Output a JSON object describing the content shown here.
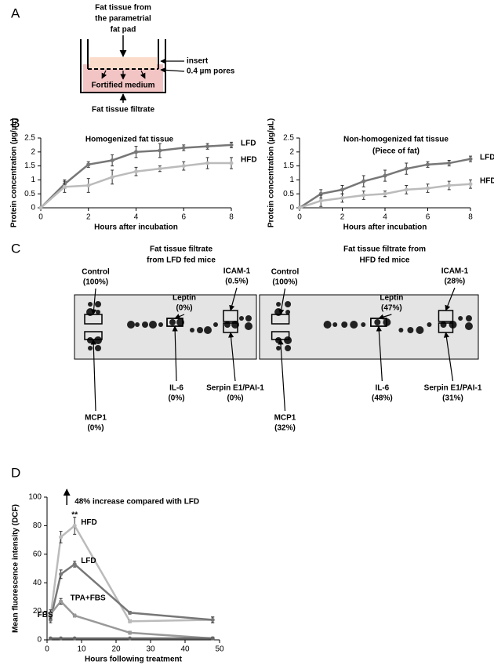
{
  "panel_labels": [
    "A",
    "B",
    "C",
    "D"
  ],
  "diagram": {
    "top_label": [
      "Fat tissue from",
      "the parametrial",
      "fat pad"
    ],
    "insert": "insert",
    "pores": "0.4 µm pores",
    "medium": "Fortified medium",
    "bottom_label": "Fat tissue filtrate"
  },
  "blots": [
    {
      "title": [
        "Fat tissue filtrate",
        "from LFD fed mice"
      ],
      "spots": [
        {
          "name": "Control",
          "percent": "(100%)"
        },
        {
          "name": "Leptin",
          "percent": "(0%)"
        },
        {
          "name": "ICAM-1",
          "percent": "(0.5%)"
        },
        {
          "name": "IL-6",
          "percent": "(0%)"
        },
        {
          "name": "Serpin E1/PAI-1",
          "percent": "(0%)"
        },
        {
          "name": "MCP1",
          "percent": "(0%)"
        }
      ]
    },
    {
      "title": [
        "Fat tissue filtrate from",
        "HFD fed mice"
      ],
      "spots": [
        {
          "name": "Control",
          "percent": "(100%)"
        },
        {
          "name": "Leptin",
          "percent": "(47%)"
        },
        {
          "name": "ICAM-1",
          "percent": "(28%)"
        },
        {
          "name": "IL-6",
          "percent": "(48%)"
        },
        {
          "name": "Serpin E1/PAI-1",
          "percent": "(31%)"
        },
        {
          "name": "MCP1",
          "percent": "(32%)"
        }
      ]
    }
  ],
  "chart_data": [
    {
      "type": "line",
      "title": "Homogenized fat tissue",
      "x_label": "Hours after incubation",
      "y_label": "Protein concentration (µg/µL)",
      "x": [
        0,
        1,
        2,
        3,
        4,
        5,
        6,
        7,
        8
      ],
      "xlim": [
        0,
        8
      ],
      "xticks": [
        0,
        2,
        4,
        6,
        8
      ],
      "ylim": [
        0,
        2.5
      ],
      "yticks": [
        0,
        0.5,
        1,
        1.5,
        2,
        2.5
      ],
      "series": [
        {
          "name": "LFD",
          "color": "#777777",
          "values": [
            0,
            0.85,
            1.55,
            1.7,
            2.0,
            2.05,
            2.15,
            2.2,
            2.25
          ],
          "errors": [
            0,
            0.15,
            0.1,
            0.2,
            0.2,
            0.25,
            0.1,
            0.1,
            0.1
          ]
        },
        {
          "name": "HFD",
          "color": "#bbbbbb",
          "values": [
            0,
            0.75,
            0.8,
            1.1,
            1.3,
            1.4,
            1.5,
            1.6,
            1.6
          ],
          "errors": [
            0,
            0.2,
            0.25,
            0.25,
            0.15,
            0.1,
            0.15,
            0.2,
            0.2
          ]
        }
      ]
    },
    {
      "type": "line",
      "title": "Non-homogenized fat tissue",
      "subtitle": "(Piece of fat)",
      "x_label": "Hours after incubation",
      "y_label": "Protein concentration (µg/µL)",
      "x": [
        0,
        1,
        2,
        3,
        4,
        5,
        6,
        7,
        8
      ],
      "xlim": [
        0,
        8
      ],
      "xticks": [
        0,
        2,
        4,
        6,
        8
      ],
      "ylim": [
        0,
        2.5
      ],
      "yticks": [
        0,
        0.5,
        1,
        1.5,
        2,
        2.5
      ],
      "series": [
        {
          "name": "LFD",
          "color": "#777777",
          "values": [
            0,
            0.5,
            0.65,
            0.95,
            1.15,
            1.4,
            1.55,
            1.6,
            1.75
          ],
          "errors": [
            0,
            0.15,
            0.15,
            0.2,
            0.2,
            0.2,
            0.1,
            0.1,
            0.1
          ]
        },
        {
          "name": "HFD",
          "color": "#bbbbbb",
          "values": [
            0,
            0.25,
            0.35,
            0.45,
            0.5,
            0.65,
            0.7,
            0.8,
            0.85
          ],
          "errors": [
            0,
            0.2,
            0.15,
            0.15,
            0.1,
            0.15,
            0.15,
            0.15,
            0.15
          ]
        }
      ]
    },
    {
      "type": "line",
      "x_label": "Hours following treatment",
      "y_label": "Mean fluorescence intensity (DCF)",
      "annotations": [
        "48% increase compared with LFD",
        "**"
      ],
      "x": [
        1,
        4,
        8,
        24,
        48
      ],
      "xlim": [
        0,
        50
      ],
      "xticks": [
        0,
        10,
        20,
        30,
        40,
        50
      ],
      "ylim": [
        0,
        100
      ],
      "yticks": [
        0,
        20,
        40,
        60,
        80,
        100
      ],
      "series": [
        {
          "name": "HFD",
          "color": "#bbbbbb",
          "values": [
            16,
            72,
            80,
            13,
            14
          ],
          "errors": [
            2,
            4,
            6,
            1,
            2
          ]
        },
        {
          "name": "LFD",
          "color": "#777777",
          "values": [
            14,
            46,
            53,
            19,
            14
          ],
          "errors": [
            2,
            3,
            2,
            1,
            2
          ]
        },
        {
          "name": "TPA+FBS",
          "color": "#999999",
          "values": [
            18,
            27,
            17,
            5,
            1
          ],
          "errors": [
            3,
            2,
            1,
            1,
            1
          ]
        },
        {
          "name": "FBS",
          "color": "#666666",
          "values": [
            1,
            1,
            1,
            1,
            1
          ],
          "errors": [
            0.5,
            0.5,
            0.5,
            0.5,
            0.5
          ]
        }
      ]
    }
  ]
}
